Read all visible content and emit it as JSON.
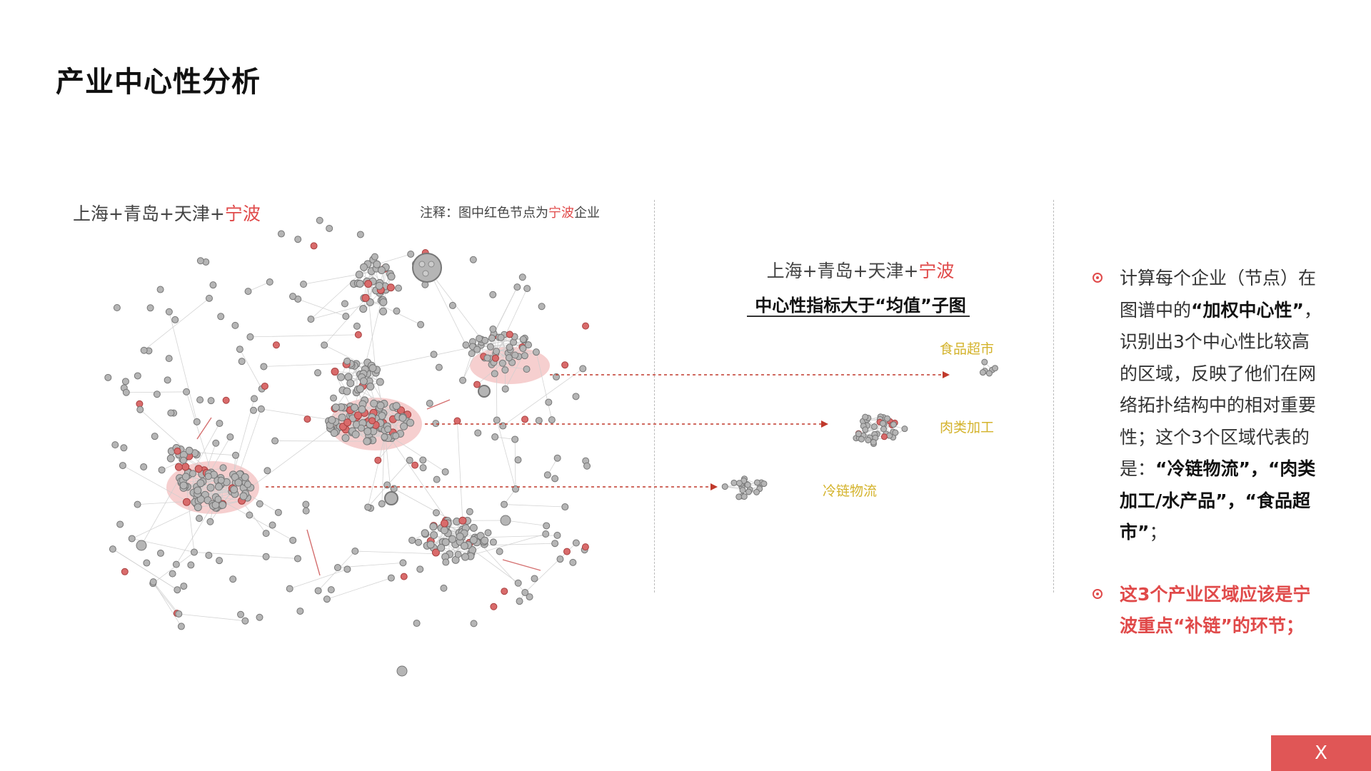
{
  "page": {
    "title": "产业中心性分析"
  },
  "main_network": {
    "title_prefix": "上海+青岛+天津+",
    "title_highlight": "宁波",
    "note_prefix": "注释：图中红色节点为",
    "note_highlight": "宁波",
    "note_suffix": "企业"
  },
  "subgraph": {
    "title_prefix": "上海+青岛+天津+",
    "title_highlight": "宁波",
    "caption": "中心性指标大于“均值”子图",
    "clusters": [
      {
        "label": "食品超市"
      },
      {
        "label": "肉类加工"
      },
      {
        "label": "冷链物流"
      }
    ]
  },
  "explanation": {
    "bullet1": {
      "t1": "计算每个企业（节点）在图谱中的",
      "t2": "“加权中心性”",
      "t3": "，识别出3个中心性比较高的区域，反映了他们在网络拓扑结构中的相对重要性；这个3个区域代表的是：",
      "t4": "“冷链物流”，“肉类加工/水产品”，“食品超市”",
      "t5": "；"
    },
    "bullet2": {
      "text": "这3个产业区域应该是宁波重点“补链”的环节；"
    }
  },
  "controls": {
    "close_label": "X"
  },
  "colors": {
    "accent": "#e04a4a",
    "node": "#b5b5b5",
    "highlight": "#f5c7c7",
    "cluster_label": "#d4b32c"
  }
}
